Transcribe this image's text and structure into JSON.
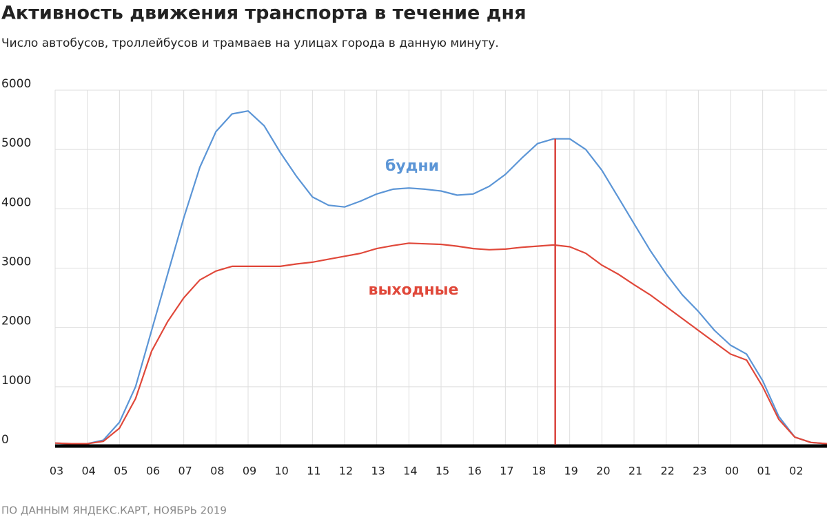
{
  "chart_data": {
    "type": "line",
    "title": "Активность движения транспорта в течение дня",
    "subtitle": "Число автобусов, троллейбусов и трамваев на улицах города в данную минуту.",
    "source": "ПО ДАННЫМ ЯНДЕКС.КАРТ, НОЯБРЬ 2019",
    "x": [
      0,
      0.5,
      1,
      1.5,
      2,
      2.5,
      3,
      3.5,
      4,
      4.5,
      5,
      5.5,
      6,
      6.5,
      7,
      7.5,
      8,
      8.5,
      9,
      9.5,
      10,
      10.5,
      11,
      11.5,
      12,
      12.5,
      13,
      13.5,
      14,
      14.5,
      15,
      15.5,
      16,
      16.5,
      17,
      17.5,
      18,
      18.5,
      19,
      19.5,
      20,
      20.5,
      21,
      21.5,
      22,
      22.5,
      23,
      23.5,
      24
    ],
    "series": [
      {
        "name": "будни",
        "color": "#5b95d6",
        "values": [
          50,
          40,
          40,
          100,
          400,
          1000,
          1950,
          2900,
          3850,
          4700,
          5300,
          5600,
          5650,
          5400,
          4950,
          4550,
          4200,
          4060,
          4030,
          4130,
          4250,
          4330,
          4350,
          4330,
          4300,
          4230,
          4250,
          4380,
          4580,
          4850,
          5100,
          5180,
          5180,
          5000,
          4650,
          4200,
          3750,
          3300,
          2900,
          2550,
          2270,
          1950,
          1700,
          1550,
          1100,
          500,
          150,
          60,
          40
        ]
      },
      {
        "name": "выходные",
        "color": "#e0483a",
        "values": [
          50,
          40,
          40,
          80,
          300,
          800,
          1600,
          2100,
          2500,
          2800,
          2950,
          3030,
          3030,
          3030,
          3030,
          3070,
          3100,
          3150,
          3200,
          3250,
          3330,
          3380,
          3420,
          3410,
          3400,
          3370,
          3330,
          3310,
          3320,
          3350,
          3370,
          3390,
          3360,
          3250,
          3050,
          2900,
          2720,
          2550,
          2350,
          2150,
          1950,
          1750,
          1550,
          1450,
          1000,
          450,
          150,
          60,
          40
        ]
      }
    ],
    "marker_x": 15.55,
    "marker_color": "#d9403a",
    "xlim": [
      0,
      24
    ],
    "xticks": [
      {
        "value": 0,
        "label": "03"
      },
      {
        "value": 1,
        "label": "04"
      },
      {
        "value": 2,
        "label": "05"
      },
      {
        "value": 3,
        "label": "06"
      },
      {
        "value": 4,
        "label": "07"
      },
      {
        "value": 5,
        "label": "08"
      },
      {
        "value": 6,
        "label": "09"
      },
      {
        "value": 7,
        "label": "10"
      },
      {
        "value": 8,
        "label": "11"
      },
      {
        "value": 9,
        "label": "12"
      },
      {
        "value": 10,
        "label": "13"
      },
      {
        "value": 11,
        "label": "14"
      },
      {
        "value": 12,
        "label": "15"
      },
      {
        "value": 13,
        "label": "16"
      },
      {
        "value": 14,
        "label": "17"
      },
      {
        "value": 15,
        "label": "18"
      },
      {
        "value": 16,
        "label": "19"
      },
      {
        "value": 17,
        "label": "20"
      },
      {
        "value": 18,
        "label": "21"
      },
      {
        "value": 19,
        "label": "22"
      },
      {
        "value": 20,
        "label": "23"
      },
      {
        "value": 21,
        "label": "00"
      },
      {
        "value": 22,
        "label": "01"
      },
      {
        "value": 23,
        "label": "02"
      }
    ],
    "ylim": [
      0,
      6000
    ],
    "yticks": [
      0,
      1000,
      2000,
      3000,
      4000,
      5000,
      6000
    ],
    "grid": true
  }
}
